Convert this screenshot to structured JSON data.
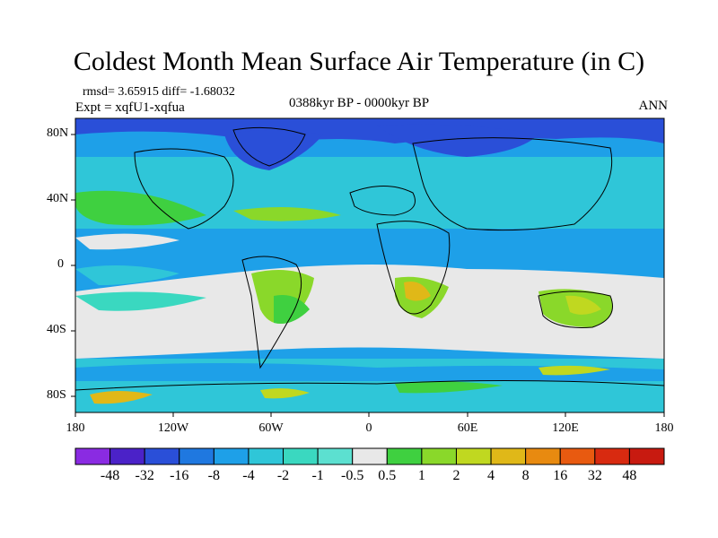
{
  "title": "Coldest Month Mean Surface Air Temperature (in C)",
  "stats": {
    "rmsd_text": "rmsd= 3.65915 diff= -1.68032"
  },
  "experiment": "Expt = xqfU1-xqfua",
  "period": "0388kyr BP - 0000kyr BP",
  "season": "ANN",
  "map": {
    "y_ticks": [
      "80N",
      "40N",
      "0",
      "40S",
      "80S"
    ],
    "x_ticks": [
      "180",
      "120W",
      "60W",
      "0",
      "60E",
      "120E",
      "180"
    ]
  },
  "colorbar": {
    "labels": [
      "-48",
      "-32",
      "-16",
      "-8",
      "-4",
      "-2",
      "-1",
      "-0.5",
      "0.5",
      "1",
      "2",
      "4",
      "8",
      "16",
      "32",
      "48"
    ],
    "colors": [
      "#8a2be2",
      "#4b22c8",
      "#2a4fd8",
      "#1f78e0",
      "#1ea0e8",
      "#2fc6d8",
      "#3ad8c0",
      "#5ce0d0",
      "#e8e8e8",
      "#3fd040",
      "#8ad82a",
      "#c0d820",
      "#e0b818",
      "#e88a10",
      "#e85a10",
      "#d82a10",
      "#c81a10"
    ]
  }
}
